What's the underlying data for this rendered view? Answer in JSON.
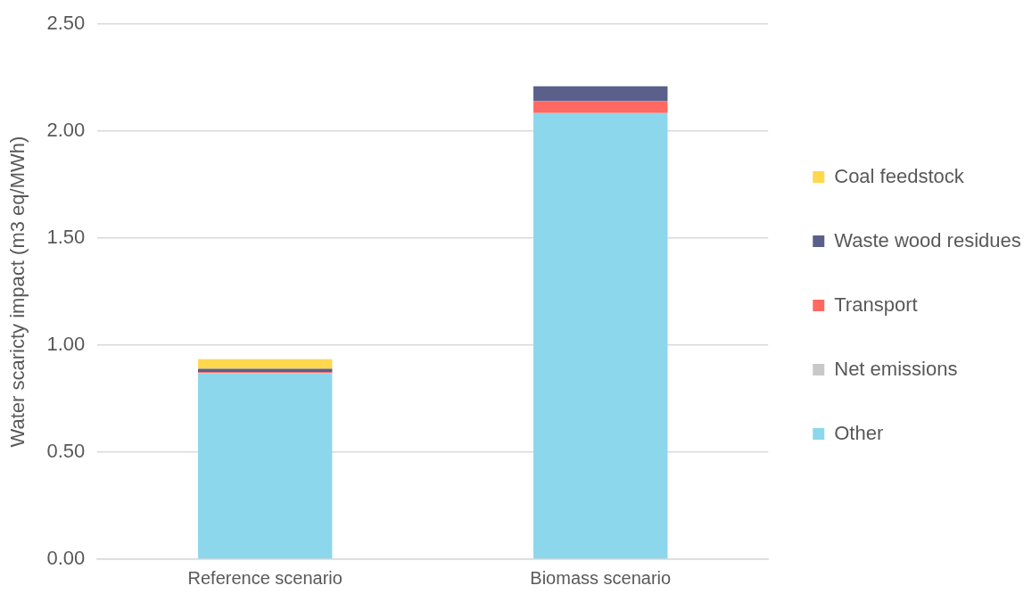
{
  "chart_data": {
    "type": "bar",
    "stacked": true,
    "ylabel": "Water scaricty impact (m3 eq/MWh)",
    "categories": [
      "Reference scenario",
      "Biomass scenario"
    ],
    "series": [
      {
        "name": "Other",
        "color": "#8cd7ec",
        "values": [
          0.87,
          2.085
        ]
      },
      {
        "name": "Net emissions",
        "color": "#c8c8c8",
        "values": [
          0,
          0
        ]
      },
      {
        "name": "Transport",
        "color": "#ff6961",
        "values": [
          0.005,
          0.055
        ]
      },
      {
        "name": "Waste wood residues",
        "color": "#5a5f8c",
        "values": [
          0.015,
          0.07
        ]
      },
      {
        "name": "Coal feedstock",
        "color": "#ffd84d",
        "values": [
          0.045,
          0
        ]
      }
    ],
    "ylim": [
      0,
      2.5
    ],
    "yticks": [
      {
        "value": 0,
        "label": "0.00"
      },
      {
        "value": 0.5,
        "label": "0.50"
      },
      {
        "value": 1,
        "label": "1.00"
      },
      {
        "value": 1.5,
        "label": "1.50"
      },
      {
        "value": 2,
        "label": "2.00"
      },
      {
        "value": 2.5,
        "label": "2.50"
      }
    ],
    "grid": "y",
    "legend": "right"
  }
}
